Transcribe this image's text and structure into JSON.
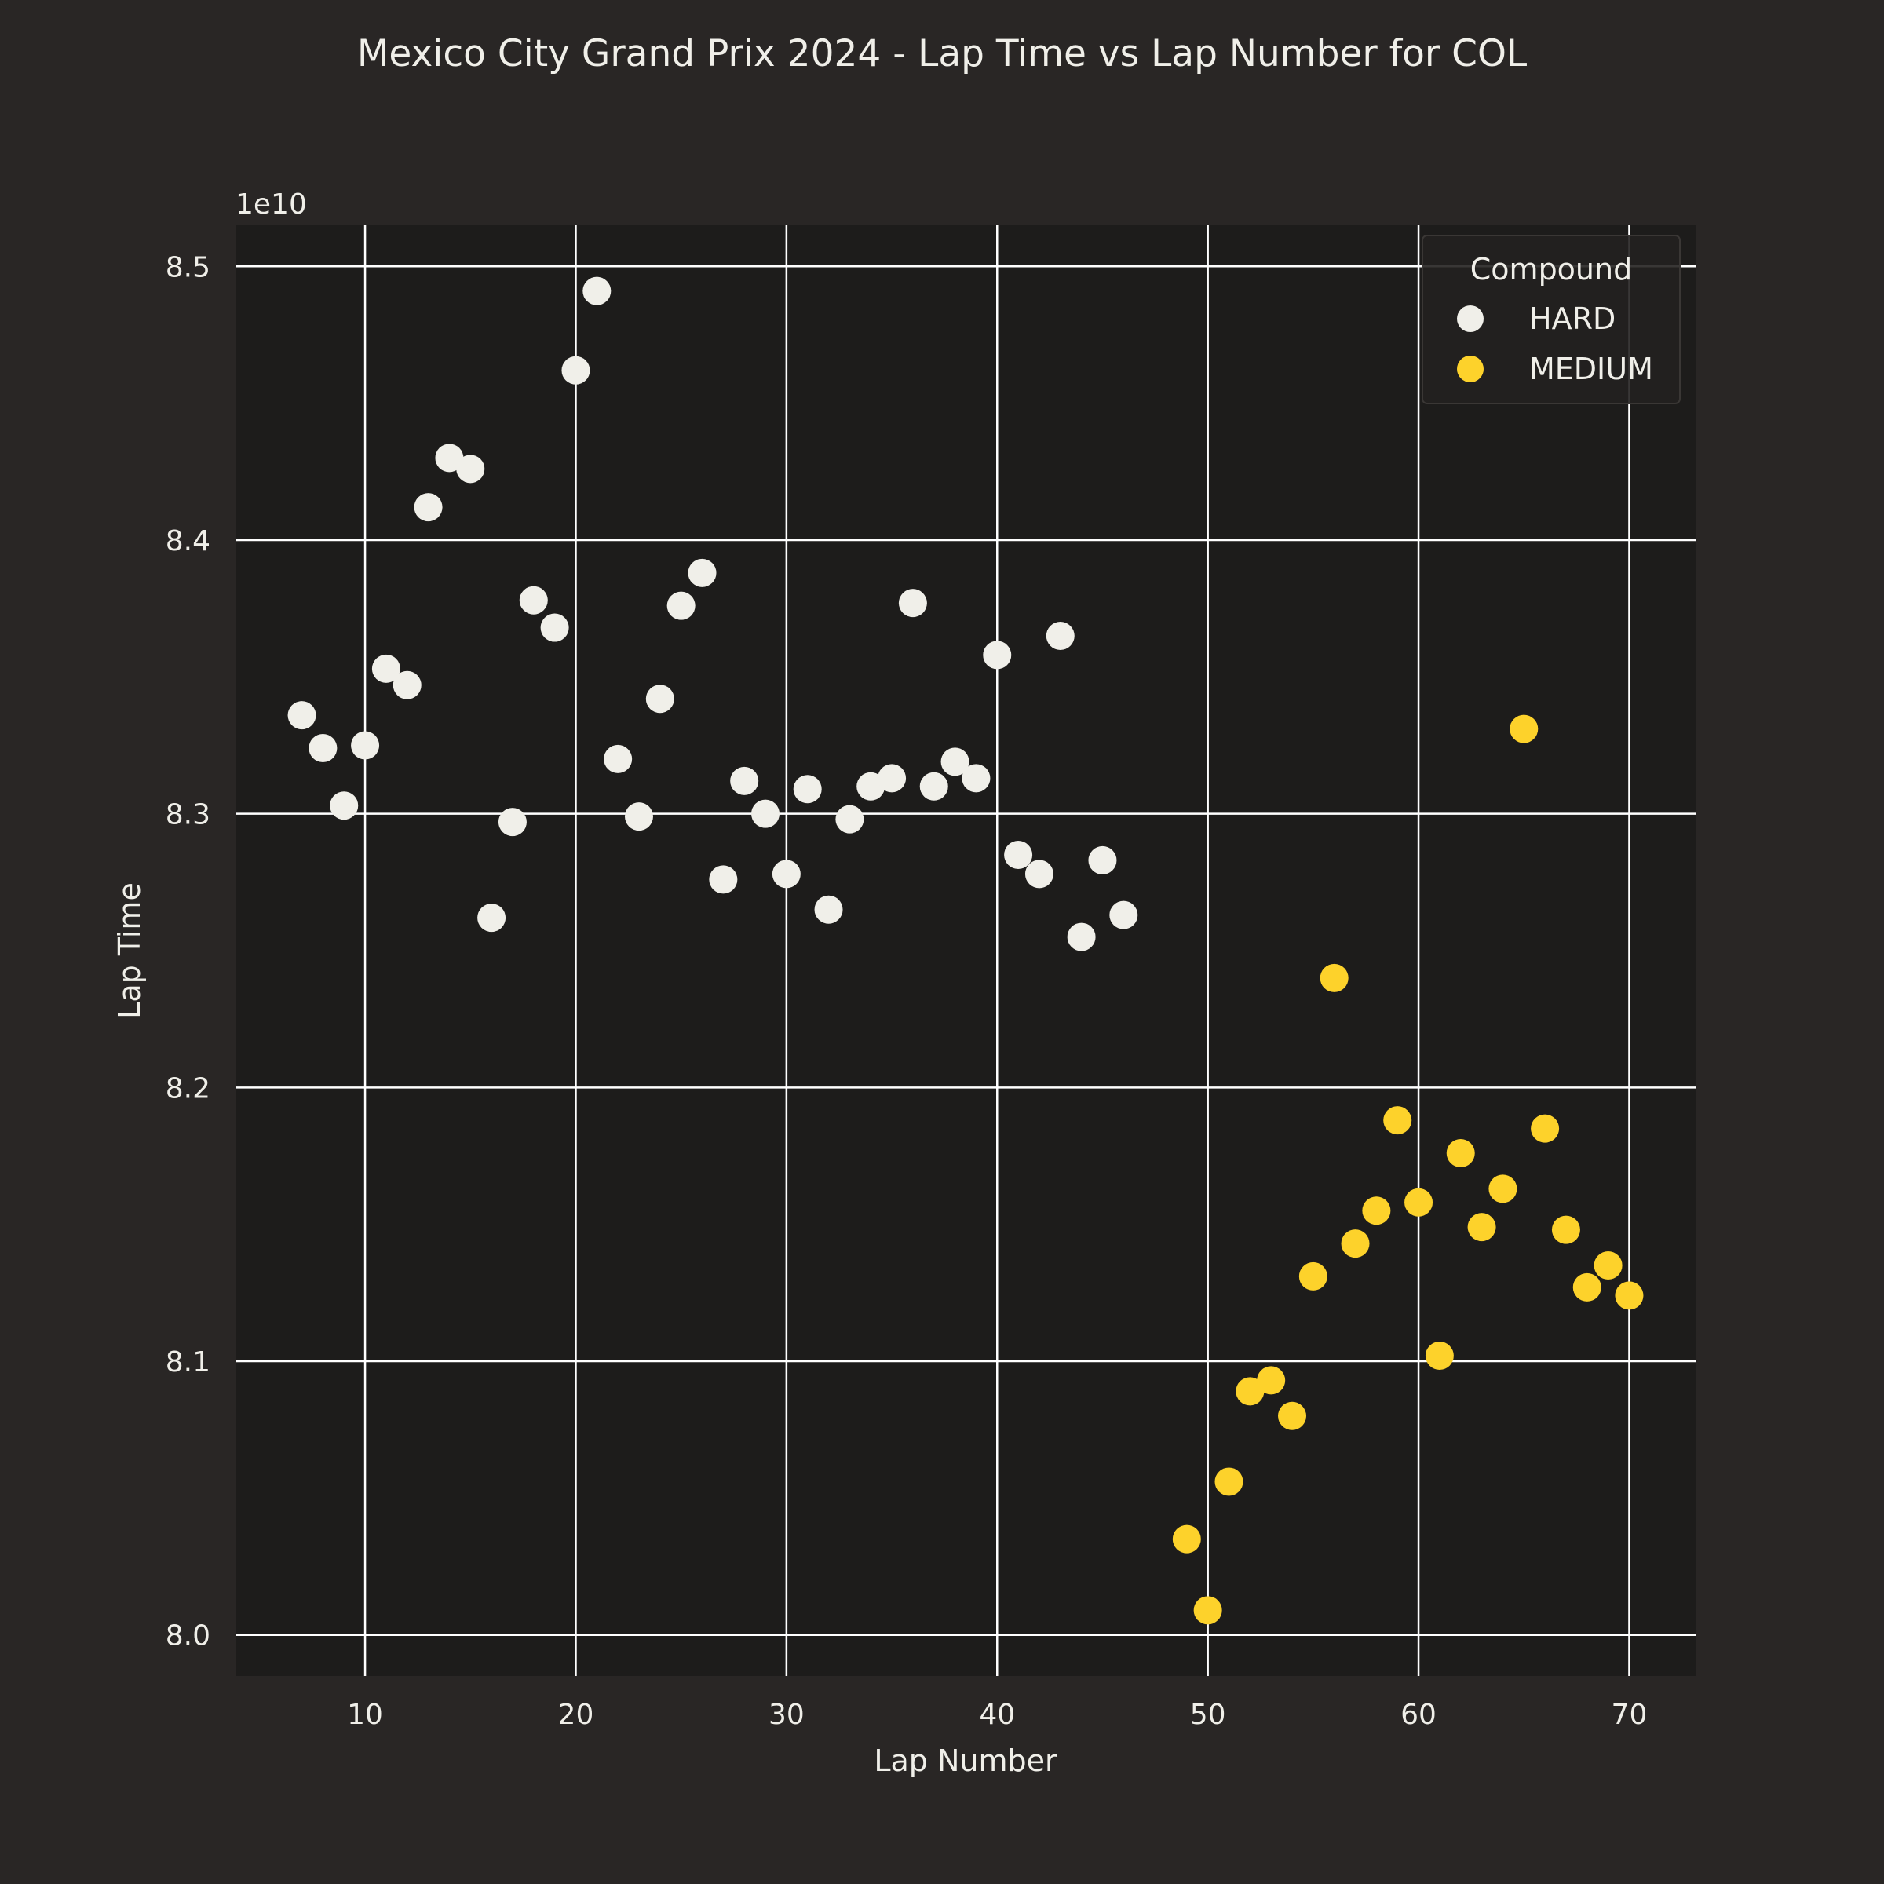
{
  "chart_data": {
    "type": "scatter",
    "title": "Mexico City Grand Prix 2024 - Lap Time vs Lap Number for COL",
    "xlabel": "Lap Number",
    "ylabel": "Lap Time",
    "y_offset_label": "1e10",
    "xlim": [
      3.85,
      73.15
    ],
    "ylim": [
      7.985,
      8.515
    ],
    "xticks": [
      10,
      20,
      30,
      40,
      50,
      60,
      70
    ],
    "yticks": [
      8.0,
      8.1,
      8.2,
      8.3,
      8.4,
      8.5
    ],
    "ytick_labels": [
      "8.0",
      "8.1",
      "8.2",
      "8.3",
      "8.4",
      "8.5"
    ],
    "grid": true,
    "legend_title": "Compound",
    "legend_position": "top-right",
    "series": [
      {
        "name": "HARD",
        "color": "#f0efe9",
        "x": [
          7,
          8,
          9,
          10,
          11,
          12,
          13,
          14,
          15,
          16,
          17,
          18,
          19,
          20,
          21,
          22,
          23,
          24,
          25,
          26,
          27,
          28,
          29,
          30,
          31,
          32,
          33,
          34,
          35,
          36,
          37,
          38,
          39,
          40,
          41,
          42,
          43,
          44,
          45,
          46
        ],
        "y": [
          8.336,
          8.324,
          8.303,
          8.325,
          8.353,
          8.347,
          8.412,
          8.43,
          8.426,
          8.262,
          8.297,
          8.378,
          8.368,
          8.462,
          8.491,
          8.32,
          8.299,
          8.342,
          8.376,
          8.388,
          8.276,
          8.312,
          8.3,
          8.278,
          8.309,
          8.265,
          8.298,
          8.31,
          8.313,
          8.377,
          8.31,
          8.319,
          8.313,
          8.358,
          8.285,
          8.278,
          8.365,
          8.255,
          8.283,
          8.263
        ]
      },
      {
        "name": "MEDIUM",
        "color": "#fdd22b",
        "x": [
          49,
          50,
          51,
          52,
          53,
          54,
          55,
          56,
          57,
          58,
          59,
          60,
          61,
          62,
          63,
          64,
          65,
          66,
          67,
          68,
          69,
          70
        ],
        "y": [
          8.035,
          8.009,
          8.056,
          8.089,
          8.093,
          8.08,
          8.131,
          8.24,
          8.143,
          8.155,
          8.188,
          8.158,
          8.102,
          8.176,
          8.149,
          8.163,
          8.331,
          8.185,
          8.148,
          8.127,
          8.135,
          8.124
        ]
      }
    ]
  }
}
